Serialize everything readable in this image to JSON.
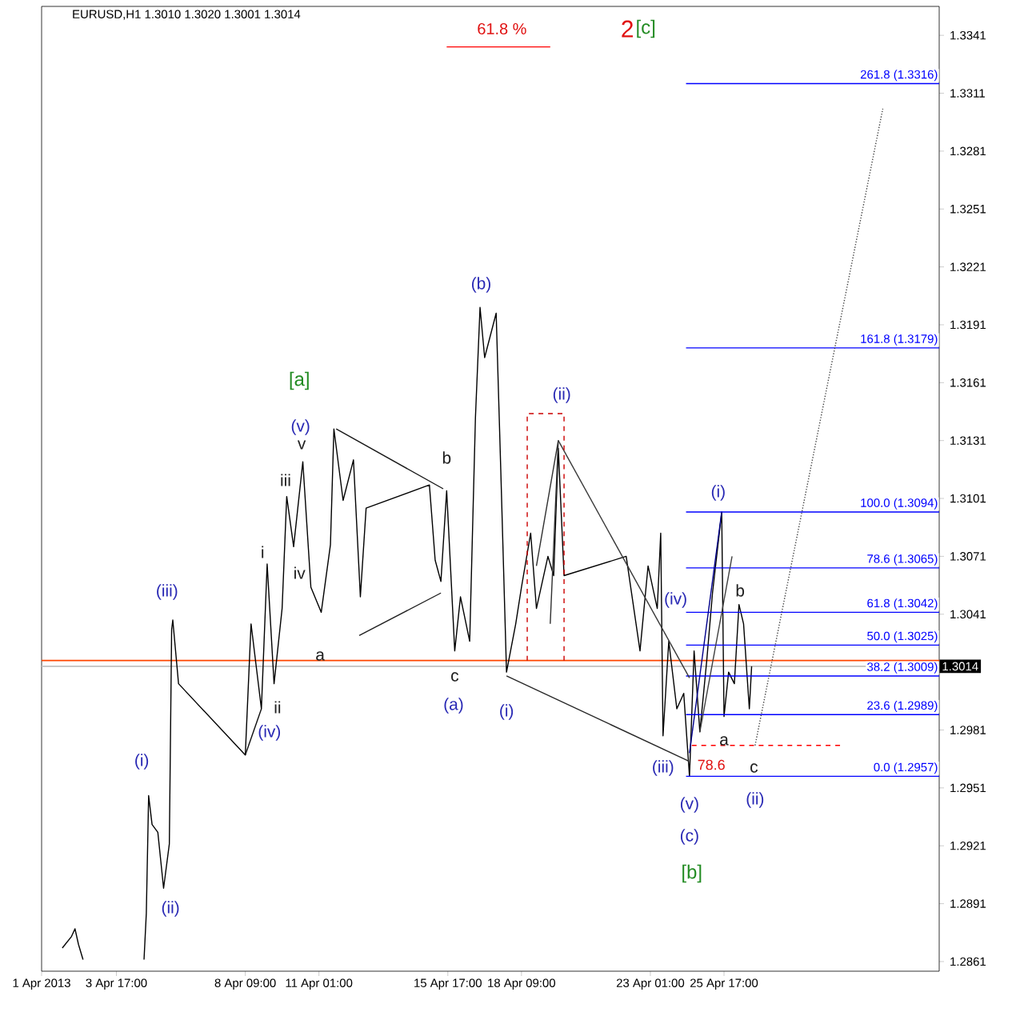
{
  "chart_data": {
    "type": "line",
    "title": "EURUSD,H1  1.3010 1.3020 1.3001 1.3014",
    "xlim": [
      "2013-04-01T00:00",
      "2013-05-03T12:00"
    ],
    "ylim": [
      1.2856,
      1.3356
    ],
    "xticks": [
      {
        "value": "2013-04-01T00:00",
        "label": "1 Apr 2013"
      },
      {
        "value": "2013-04-03T17:00",
        "label": "3 Apr 17:00"
      },
      {
        "value": "2013-04-08T09:00",
        "label": "8 Apr 09:00"
      },
      {
        "value": "2013-04-11T01:00",
        "label": "11 Apr 01:00"
      },
      {
        "value": "2013-04-15T17:00",
        "label": "15 Apr 17:00"
      },
      {
        "value": "2013-04-18T09:00",
        "label": "18 Apr 09:00"
      },
      {
        "value": "2013-04-23T01:00",
        "label": "23 Apr 01:00"
      },
      {
        "value": "2013-04-25T17:00",
        "label": "25 Apr 17:00"
      }
    ],
    "yticks": [
      1.2861,
      1.2891,
      1.2921,
      1.2951,
      1.2981,
      1.3041,
      1.3071,
      1.3101,
      1.3131,
      1.3161,
      1.3191,
      1.3221,
      1.3251,
      1.3281,
      1.3311,
      1.3341
    ],
    "series": [
      {
        "color": "#000000",
        "x": [
          "2013-04-01T18:00",
          "2013-04-02T02:00",
          "2013-04-02T05:00",
          "2013-04-02T08:00",
          "2013-04-02T12:00",
          "2013-04-03T13:00",
          "2013-04-04T17:00",
          "2013-04-04T19:00",
          "2013-04-04T21:00",
          "2013-04-05T00:00",
          "2013-04-05T05:00",
          "2013-04-05T10:00",
          "2013-04-05T15:00",
          "2013-04-05T17:00",
          "2013-04-05T18:00",
          "2013-04-05T23:00",
          "2013-04-08T09:00",
          "2013-04-08T14:00",
          "2013-04-08T23:00",
          "2013-04-09T04:00",
          "2013-04-09T10:00",
          "2013-04-09T17:00",
          "2013-04-09T21:00",
          "2013-04-10T03:00",
          "2013-04-10T11:00",
          "2013-04-10T18:00",
          "2013-04-11T03:00",
          "2013-04-11T11:00",
          "2013-04-11T14:00",
          "2013-04-11T22:00",
          "2013-04-12T07:00",
          "2013-04-12T13:00",
          "2013-04-12T18:00",
          "2013-04-15T01:00",
          "2013-04-15T06:00",
          "2013-04-15T11:00",
          "2013-04-15T16:00",
          "2013-04-15T23:00",
          "2013-04-16T04:00",
          "2013-04-16T12:00",
          "2013-04-16T17:00",
          "2013-04-16T21:00",
          "2013-04-17T01:00",
          "2013-04-17T11:00",
          "2013-04-17T15:00",
          "2013-04-17T20:00",
          "2013-04-18T04:00",
          "2013-04-18T09:00",
          "2013-04-18T17:00",
          "2013-04-18T22:00",
          "2013-04-19T08:00",
          "2013-04-19T13:00",
          "2013-04-19T17:00",
          "2013-04-19T22:00",
          "2013-04-22T04:00",
          "2013-04-22T16:00",
          "2013-04-22T23:00",
          "2013-04-23T07:00",
          "2013-04-23T10:00",
          "2013-04-23T12:00",
          "2013-04-23T17:00",
          "2013-04-24T00:00",
          "2013-04-24T06:00",
          "2013-04-24T11:00",
          "2013-04-24T15:00",
          "2013-04-24T20:00",
          "2013-04-25T02:00",
          "2013-04-25T07:00",
          "2013-04-25T15:00",
          "2013-04-25T17:00",
          "2013-04-25T21:00",
          "2013-04-26T02:00",
          "2013-04-26T06:00",
          "2013-04-26T10:00",
          "2013-04-26T15:00",
          "2013-04-26T17:00"
        ],
        "values": [
          1.2868,
          1.2874,
          1.2878,
          1.287,
          1.2862,
          null,
          1.2862,
          1.2886,
          1.2947,
          1.2932,
          1.2928,
          1.2899,
          1.2922,
          1.3033,
          1.3038,
          1.3005,
          1.2968,
          1.3036,
          1.2992,
          1.3067,
          1.3005,
          1.3044,
          1.3102,
          1.3076,
          1.312,
          1.3055,
          1.3042,
          1.3077,
          1.3137,
          1.31,
          1.3121,
          1.305,
          1.3096,
          1.3108,
          1.3069,
          1.3058,
          1.3105,
          1.3022,
          1.305,
          1.3027,
          1.3143,
          1.32,
          1.3174,
          1.3197,
          1.3116,
          1.3011,
          1.3036,
          1.3055,
          1.3083,
          1.3044,
          1.3071,
          1.3061,
          1.3127,
          1.3061,
          1.3071,
          1.3022,
          1.3066,
          1.3044,
          1.3083,
          1.2978,
          1.3027,
          1.2992,
          1.3,
          1.2957,
          1.3022,
          1.298,
          1.3017,
          1.3052,
          1.3094,
          1.2988,
          1.3011,
          1.3005,
          1.3046,
          1.3036,
          1.2992,
          1.3014
        ]
      },
      {
        "name": "261.8 (1.3316)",
        "color": "#0000ff",
        "x": [
          "2013-04-24T08:00",
          "2013-05-03T12:00"
        ],
        "values": [
          1.3316,
          1.3316
        ]
      },
      {
        "name": "161.8 (1.3179)",
        "color": "#0000ff",
        "x": [
          "2013-04-24T08:00",
          "2013-05-03T12:00"
        ],
        "values": [
          1.3179,
          1.3179
        ]
      },
      {
        "name": "100.0 (1.3094)",
        "color": "#0000ff",
        "x": [
          "2013-04-24T08:00",
          "2013-05-03T12:00"
        ],
        "values": [
          1.3094,
          1.3094
        ]
      },
      {
        "name": "78.6 (1.3065)",
        "color": "#0000ff",
        "x": [
          "2013-04-24T08:00",
          "2013-05-03T12:00"
        ],
        "values": [
          1.3065,
          1.3065
        ]
      },
      {
        "name": "61.8 (1.3042)",
        "color": "#0000ff",
        "x": [
          "2013-04-24T08:00",
          "2013-05-03T12:00"
        ],
        "values": [
          1.3042,
          1.3042
        ]
      },
      {
        "name": "50.0 (1.3025)",
        "color": "#0000ff",
        "x": [
          "2013-04-24T08:00",
          "2013-05-03T12:00"
        ],
        "values": [
          1.3025,
          1.3025
        ]
      },
      {
        "name": "38.2 (1.3009)",
        "color": "#0000ff",
        "x": [
          "2013-04-24T08:00",
          "2013-05-03T12:00"
        ],
        "values": [
          1.3009,
          1.3009
        ]
      },
      {
        "name": "23.6 (1.2989)",
        "color": "#0000ff",
        "x": [
          "2013-04-24T08:00",
          "2013-05-03T12:00"
        ],
        "values": [
          1.2989,
          1.2989
        ]
      },
      {
        "name": "0.0 (1.2957)",
        "color": "#0000ff",
        "x": [
          "2013-04-24T08:00",
          "2013-05-03T12:00"
        ],
        "values": [
          1.2957,
          1.2957
        ]
      },
      {
        "color": "#101010",
        "x": [
          "2013-04-08T09:00",
          "2013-04-08T23:00"
        ],
        "values": [
          1.2968,
          1.2992
        ]
      },
      {
        "color": "#181818",
        "x": [
          "2013-04-11T16:00",
          "2013-04-15T13:00"
        ],
        "values": [
          1.3137,
          1.3106
        ]
      },
      {
        "color": "#202020",
        "x": [
          "2013-04-12T12:00",
          "2013-04-15T11:00"
        ],
        "values": [
          1.303,
          1.3052
        ]
      },
      {
        "color": "#282828",
        "x": [
          "2013-04-17T20:00",
          "2013-04-24T10:00"
        ],
        "values": [
          1.3009,
          1.2965
        ]
      },
      {
        "color": "#303030",
        "x": [
          "2013-04-18T22:00",
          "2013-04-19T17:00",
          "2013-04-19T10:00"
        ],
        "values": [
          1.3066,
          1.3131,
          1.3036
        ]
      },
      {
        "color": "#383838",
        "x": [
          "2013-04-19T17:00",
          "2013-04-24T11:00"
        ],
        "values": [
          1.3131,
          1.3008
        ]
      },
      {
        "color": "#00008b",
        "x": [
          "2013-04-24T11:00",
          "2013-04-25T15:00"
        ],
        "values": [
          1.2969,
          1.3094
        ]
      },
      {
        "color": "#404040",
        "x": [
          "2013-04-24T20:00",
          "2013-04-26T00:00"
        ],
        "values": [
          1.298,
          1.3071
        ]
      },
      {
        "color": "#484848",
        "line_style": "dotted",
        "x": [
          "2013-04-26T20:00",
          "2013-05-01T11:00"
        ],
        "values": [
          1.2973,
          1.3303
        ]
      },
      {
        "color": "#ff0000",
        "line_style": "dashed",
        "x": [
          "2013-04-24T13:00",
          "2013-04-29T23:00"
        ],
        "values": [
          1.2973,
          1.2973
        ]
      },
      {
        "color": "#cc0000",
        "line_style": "dashed",
        "x": [
          "2013-04-18T14:00",
          "2013-04-18T14:00",
          "2013-04-19T22:00",
          "2013-04-19T22:00"
        ],
        "values": [
          1.3017,
          1.3145,
          1.3145,
          1.3017
        ]
      },
      {
        "color": "#ff0000",
        "x": [
          "2013-04-15T16:00",
          "2013-04-19T10:00"
        ],
        "values": [
          1.3335,
          1.3335
        ]
      }
    ],
    "ref_lines": [
      {
        "axis": "y",
        "value": 1.3017,
        "color": "#ff4500"
      },
      {
        "axis": "y",
        "value": 1.3014,
        "label": "1.3014",
        "color": "#c0c0c0"
      }
    ],
    "annotations": [
      "[a]",
      "(v)",
      "v",
      "iii",
      "i",
      "iv",
      "(iii)",
      "a",
      "ii",
      "(iv)",
      "(i)",
      "(ii)",
      "b",
      "c",
      "(a)",
      "(b)",
      "(ii)",
      "(i)",
      "(iii)",
      "(iv)",
      "(v)",
      "(c)",
      "[b]",
      "(i)",
      "b",
      "a",
      "c",
      "(ii)",
      "78.6",
      "61.8 %",
      "2",
      "[c]"
    ]
  }
}
